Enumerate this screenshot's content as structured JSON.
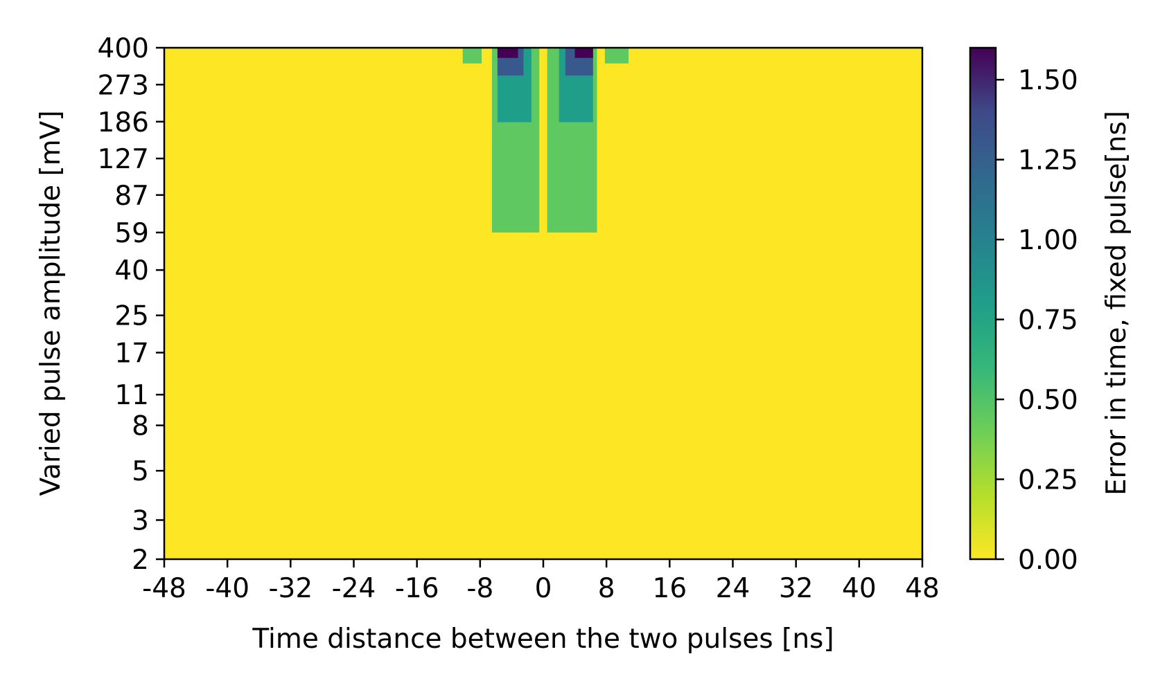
{
  "chart_data": {
    "type": "heatmap",
    "title": "",
    "xlabel": "Time distance between the two pulses [ns]",
    "ylabel": "Varied pulse amplitude [mV]",
    "colorbar_label": "Error in time, fixed pulse[ns]",
    "colormap": "viridis",
    "background_value": 0.0,
    "x_range": [
      -48,
      48
    ],
    "y_scale": "log",
    "y_range": [
      2,
      400
    ],
    "color_range": [
      0.0,
      1.6
    ],
    "x_ticks": [
      "-48",
      "-40",
      "-32",
      "-24",
      "-16",
      "-8",
      "0",
      "8",
      "16",
      "24",
      "32",
      "40",
      "48"
    ],
    "y_ticks": [
      "2",
      "3",
      "5",
      "8",
      "11",
      "17",
      "25",
      "40",
      "59",
      "87",
      "127",
      "186",
      "273",
      "400"
    ],
    "colorbar_ticks": [
      "0.00",
      "0.25",
      "0.50",
      "0.75",
      "1.00",
      "1.25",
      "1.50"
    ],
    "regions": [
      {
        "value": 0.45,
        "x_min": -10.2,
        "x_max": -7.8,
        "y_min": 340,
        "y_max": 400
      },
      {
        "value": 0.45,
        "x_min": 7.8,
        "x_max": 10.8,
        "y_min": 340,
        "y_max": 400
      },
      {
        "value": 0.45,
        "x_min": -6.5,
        "x_max": -0.5,
        "y_min": 59,
        "y_max": 400
      },
      {
        "value": 0.45,
        "x_min": 0.5,
        "x_max": 6.8,
        "y_min": 59,
        "y_max": 400
      },
      {
        "value": 0.8,
        "x_min": -5.8,
        "x_max": -1.5,
        "y_min": 185,
        "y_max": 400
      },
      {
        "value": 0.8,
        "x_min": 2.0,
        "x_max": 6.3,
        "y_min": 185,
        "y_max": 400
      },
      {
        "value": 1.3,
        "x_min": -5.8,
        "x_max": -2.5,
        "y_min": 300,
        "y_max": 400
      },
      {
        "value": 1.3,
        "x_min": 2.8,
        "x_max": 6.3,
        "y_min": 300,
        "y_max": 400
      },
      {
        "value": 1.6,
        "x_min": -5.8,
        "x_max": -3.2,
        "y_min": 360,
        "y_max": 400
      },
      {
        "value": 1.6,
        "x_min": 4.0,
        "x_max": 6.3,
        "y_min": 360,
        "y_max": 400
      }
    ]
  }
}
